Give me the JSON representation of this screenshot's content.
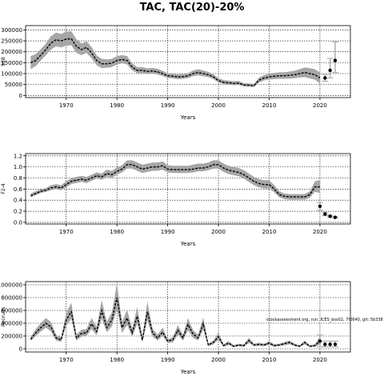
{
  "title": "TAC, TAC(20)-20%",
  "footnote": "stockassessment.org, run: ICES_bss02, 7f2640, git: 5b338",
  "chart_data": [
    {
      "type": "line",
      "xlabel": "Years",
      "ylabel": "SSB",
      "xlim": [
        1962,
        2026
      ],
      "ylim": [
        -10000,
        320000
      ],
      "yticks": [
        0,
        50000,
        100000,
        150000,
        200000,
        250000,
        300000
      ],
      "ytick_labels": [
        "0",
        "50000",
        "100000",
        "150000",
        "200000",
        "250000",
        "300000"
      ],
      "grid": true,
      "series": [
        {
          "x": [
            1963,
            1964,
            1965,
            1966,
            1967,
            1968,
            1969,
            1970,
            1971,
            1972,
            1973,
            1974,
            1975,
            1976,
            1977,
            1978,
            1979,
            1980,
            1981,
            1982,
            1983,
            1984,
            1985,
            1986,
            1987,
            1988,
            1989,
            1990,
            1991,
            1992,
            1993,
            1994,
            1995,
            1996,
            1997,
            1998,
            1999,
            2000,
            2001,
            2002,
            2003,
            2004,
            2005,
            2006,
            2007,
            2008,
            2009,
            2010,
            2011,
            2012,
            2013,
            2014,
            2015,
            2016,
            2017,
            2018,
            2019,
            2020
          ],
          "values": [
            150000,
            160000,
            185000,
            210000,
            240000,
            255000,
            250000,
            258000,
            260000,
            225000,
            210000,
            220000,
            195000,
            160000,
            145000,
            145000,
            148000,
            160000,
            165000,
            160000,
            130000,
            115000,
            115000,
            110000,
            112000,
            108000,
            100000,
            90000,
            88000,
            85000,
            86000,
            90000,
            100000,
            105000,
            100000,
            95000,
            85000,
            68000,
            60000,
            58000,
            55000,
            56000,
            48000,
            47000,
            45000,
            70000,
            80000,
            85000,
            88000,
            90000,
            90000,
            92000,
            95000,
            100000,
            105000,
            100000,
            95000,
            80000
          ],
          "lower": [
            120000,
            135000,
            160000,
            185000,
            210000,
            225000,
            220000,
            228000,
            230000,
            195000,
            185000,
            195000,
            170000,
            138000,
            125000,
            127000,
            130000,
            142000,
            147000,
            142000,
            115000,
            102000,
            102000,
            98000,
            100000,
            96000,
            89000,
            80000,
            78000,
            75000,
            76000,
            80000,
            88000,
            92000,
            88000,
            84000,
            75000,
            59000,
            52000,
            50000,
            47000,
            48000,
            41000,
            40000,
            38000,
            60000,
            69000,
            73000,
            75000,
            76000,
            76000,
            77000,
            79000,
            82000,
            84000,
            78000,
            72000,
            55000
          ],
          "upper": [
            180000,
            190000,
            212000,
            238000,
            272000,
            288000,
            282000,
            292000,
            295000,
            258000,
            238000,
            248000,
            222000,
            184000,
            168000,
            165000,
            168000,
            180000,
            185000,
            180000,
            147000,
            130000,
            130000,
            124000,
            126000,
            122000,
            113000,
            102000,
            100000,
            97000,
            98000,
            102000,
            114000,
            120000,
            114000,
            108000,
            97000,
            79000,
            70000,
            68000,
            65000,
            66000,
            56000,
            55000,
            53000,
            82000,
            93000,
            99000,
            103000,
            106000,
            106000,
            109000,
            113000,
            120000,
            128000,
            125000,
            120000,
            105000
          ]
        }
      ],
      "forecast": [
        {
          "x": 2021,
          "value": 80000,
          "lower": 65000,
          "upper": 95000
        },
        {
          "x": 2022,
          "value": 115000,
          "lower": 80000,
          "upper": 170000
        },
        {
          "x": 2023,
          "value": 160000,
          "lower": 105000,
          "upper": 245000
        }
      ]
    },
    {
      "type": "line",
      "xlabel": "Years",
      "ylabel": "F2-4",
      "xlim": [
        1962,
        2026
      ],
      "ylim": [
        -0.03,
        1.24
      ],
      "yticks": [
        0.0,
        0.2,
        0.4,
        0.6,
        0.8,
        1.0,
        1.2
      ],
      "ytick_labels": [
        "0.0",
        "0.2",
        "0.4",
        "0.6",
        "0.8",
        "1.0",
        "1.2"
      ],
      "grid": true,
      "series": [
        {
          "x": [
            1963,
            1964,
            1965,
            1966,
            1967,
            1968,
            1969,
            1970,
            1971,
            1972,
            1973,
            1974,
            1975,
            1976,
            1977,
            1978,
            1979,
            1980,
            1981,
            1982,
            1983,
            1984,
            1985,
            1986,
            1987,
            1988,
            1989,
            1990,
            1991,
            1992,
            1993,
            1994,
            1995,
            1996,
            1997,
            1998,
            1999,
            2000,
            2001,
            2002,
            2003,
            2004,
            2005,
            2006,
            2007,
            2008,
            2009,
            2010,
            2011,
            2012,
            2013,
            2014,
            2015,
            2016,
            2017,
            2018,
            2019,
            2020
          ],
          "values": [
            0.48,
            0.52,
            0.56,
            0.58,
            0.62,
            0.64,
            0.62,
            0.68,
            0.74,
            0.76,
            0.78,
            0.76,
            0.8,
            0.84,
            0.82,
            0.88,
            0.86,
            0.92,
            0.96,
            1.04,
            1.04,
            1.0,
            0.96,
            0.98,
            1.0,
            1.0,
            1.02,
            0.96,
            0.95,
            0.95,
            0.95,
            0.95,
            0.96,
            0.98,
            0.98,
            1.0,
            1.04,
            1.04,
            0.98,
            0.94,
            0.92,
            0.9,
            0.86,
            0.8,
            0.74,
            0.7,
            0.68,
            0.68,
            0.6,
            0.5,
            0.47,
            0.46,
            0.46,
            0.46,
            0.46,
            0.5,
            0.64,
            0.64
          ],
          "lower": [
            0.45,
            0.49,
            0.53,
            0.55,
            0.58,
            0.6,
            0.58,
            0.63,
            0.69,
            0.71,
            0.73,
            0.71,
            0.75,
            0.79,
            0.77,
            0.82,
            0.8,
            0.86,
            0.9,
            0.97,
            0.97,
            0.93,
            0.89,
            0.91,
            0.93,
            0.93,
            0.95,
            0.9,
            0.89,
            0.89,
            0.89,
            0.89,
            0.9,
            0.92,
            0.92,
            0.94,
            0.97,
            0.97,
            0.91,
            0.87,
            0.85,
            0.83,
            0.79,
            0.73,
            0.67,
            0.63,
            0.61,
            0.61,
            0.54,
            0.45,
            0.42,
            0.41,
            0.41,
            0.41,
            0.41,
            0.44,
            0.55,
            0.53
          ],
          "upper": [
            0.52,
            0.56,
            0.6,
            0.62,
            0.67,
            0.69,
            0.67,
            0.74,
            0.8,
            0.82,
            0.84,
            0.82,
            0.86,
            0.9,
            0.88,
            0.95,
            0.93,
            0.99,
            1.03,
            1.12,
            1.12,
            1.08,
            1.04,
            1.06,
            1.08,
            1.08,
            1.1,
            1.03,
            1.02,
            1.02,
            1.02,
            1.02,
            1.04,
            1.06,
            1.06,
            1.08,
            1.12,
            1.12,
            1.06,
            1.02,
            1.0,
            0.98,
            0.94,
            0.88,
            0.82,
            0.78,
            0.76,
            0.76,
            0.67,
            0.56,
            0.52,
            0.51,
            0.51,
            0.51,
            0.51,
            0.56,
            0.74,
            0.76
          ]
        }
      ],
      "forecast": [
        {
          "x": 2020,
          "value": 0.29,
          "lower": 0.22,
          "upper": 0.36
        },
        {
          "x": 2021,
          "value": 0.15,
          "lower": 0.12,
          "upper": 0.18
        },
        {
          "x": 2022,
          "value": 0.11,
          "lower": 0.09,
          "upper": 0.13
        },
        {
          "x": 2023,
          "value": 0.09,
          "lower": 0.08,
          "upper": 0.1
        }
      ]
    },
    {
      "type": "line",
      "xlabel": "Years",
      "ylabel": "Recruits",
      "xlim": [
        1962,
        2026
      ],
      "ylim": [
        -50000,
        1050000
      ],
      "yticks": [
        0,
        200000,
        400000,
        600000,
        800000,
        1000000
      ],
      "ytick_labels": [
        "0",
        "200000",
        "400000",
        "600000",
        "800000",
        "1000000"
      ],
      "grid": true,
      "series": [
        {
          "x": [
            1963,
            1964,
            1965,
            1966,
            1967,
            1968,
            1969,
            1970,
            1971,
            1972,
            1973,
            1974,
            1975,
            1976,
            1977,
            1978,
            1979,
            1980,
            1981,
            1982,
            1983,
            1984,
            1985,
            1986,
            1987,
            1988,
            1989,
            1990,
            1991,
            1992,
            1993,
            1994,
            1995,
            1996,
            1997,
            1998,
            1999,
            2000,
            2001,
            2002,
            2003,
            2004,
            2005,
            2006,
            2007,
            2008,
            2009,
            2010,
            2011,
            2012,
            2013,
            2014,
            2015,
            2016,
            2017,
            2018,
            2019,
            2020
          ],
          "values": [
            150000,
            250000,
            330000,
            400000,
            340000,
            170000,
            140000,
            450000,
            580000,
            170000,
            240000,
            250000,
            390000,
            270000,
            600000,
            330000,
            450000,
            800000,
            330000,
            480000,
            250000,
            510000,
            140000,
            580000,
            250000,
            170000,
            260000,
            120000,
            140000,
            290000,
            170000,
            380000,
            230000,
            170000,
            390000,
            60000,
            100000,
            190000,
            50000,
            90000,
            40000,
            60000,
            50000,
            130000,
            60000,
            70000,
            60000,
            90000,
            50000,
            60000,
            80000,
            100000,
            60000,
            40000,
            100000,
            40000,
            50000,
            120000
          ],
          "lower": [
            120000,
            200000,
            270000,
            330000,
            270000,
            130000,
            110000,
            360000,
            470000,
            130000,
            190000,
            200000,
            310000,
            210000,
            470000,
            260000,
            350000,
            620000,
            250000,
            370000,
            190000,
            390000,
            100000,
            440000,
            190000,
            130000,
            200000,
            90000,
            100000,
            220000,
            130000,
            290000,
            170000,
            130000,
            300000,
            40000,
            70000,
            140000,
            30000,
            60000,
            25000,
            40000,
            30000,
            90000,
            40000,
            45000,
            40000,
            60000,
            30000,
            40000,
            55000,
            70000,
            40000,
            25000,
            70000,
            25000,
            30000,
            70000
          ],
          "upper": [
            180000,
            310000,
            400000,
            480000,
            420000,
            220000,
            180000,
            560000,
            720000,
            220000,
            300000,
            310000,
            480000,
            340000,
            760000,
            420000,
            570000,
            1020000,
            420000,
            610000,
            320000,
            650000,
            180000,
            740000,
            320000,
            220000,
            330000,
            150000,
            180000,
            370000,
            220000,
            480000,
            290000,
            220000,
            490000,
            80000,
            130000,
            250000,
            70000,
            120000,
            55000,
            80000,
            70000,
            170000,
            80000,
            95000,
            80000,
            120000,
            70000,
            80000,
            105000,
            130000,
            80000,
            55000,
            130000,
            55000,
            70000,
            190000
          ]
        }
      ],
      "forecast": [
        {
          "x": 2020,
          "value": 120000,
          "lower": 30000,
          "upper": 220000
        },
        {
          "x": 2021,
          "value": 70000,
          "lower": 30000,
          "upper": 120000
        },
        {
          "x": 2022,
          "value": 70000,
          "lower": 30000,
          "upper": 120000
        },
        {
          "x": 2023,
          "value": 70000,
          "lower": 30000,
          "upper": 120000
        }
      ]
    }
  ],
  "xticks": [
    1970,
    1980,
    1990,
    2000,
    2010,
    2020
  ]
}
